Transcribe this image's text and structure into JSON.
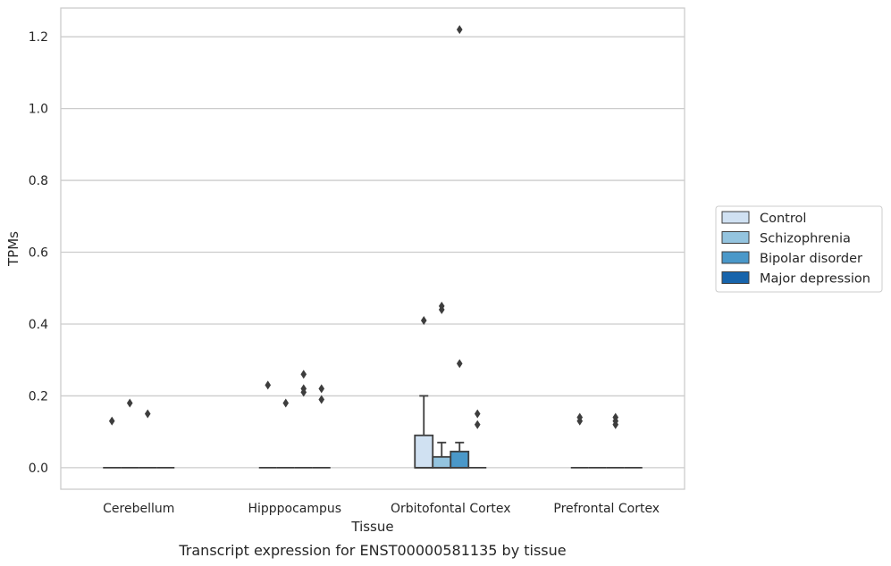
{
  "chart_data": {
    "type": "box",
    "title": "",
    "caption": "Transcript expression for ENST00000581135 by tissue",
    "xlabel": "Tissue",
    "ylabel": "TPMs",
    "ylim": [
      -0.06,
      1.28
    ],
    "yticks": [
      0.0,
      0.2,
      0.4,
      0.6,
      0.8,
      1.0,
      1.2
    ],
    "ytick_labels": [
      "0.0",
      "0.2",
      "0.4",
      "0.6",
      "0.8",
      "1.0",
      "1.2"
    ],
    "grid": "horizontal",
    "legend_position": "right",
    "categories": [
      "Cerebellum",
      "Hipppocampus",
      "Orbitofontal Cortex",
      "Prefrontal Cortex"
    ],
    "series": [
      {
        "name": "Control",
        "color": "#d0e1f2",
        "boxes": [
          {
            "q1": 0,
            "median": 0,
            "q3": 0,
            "whisker_low": 0,
            "whisker_high": 0,
            "outliers": [
              0.13
            ]
          },
          {
            "q1": 0,
            "median": 0,
            "q3": 0,
            "whisker_low": 0,
            "whisker_high": 0,
            "outliers": [
              0.23
            ]
          },
          {
            "q1": 0,
            "median": 0,
            "q3": 0.09,
            "whisker_low": 0,
            "whisker_high": 0.2,
            "outliers": [
              0.41
            ]
          },
          {
            "q1": 0,
            "median": 0,
            "q3": 0,
            "whisker_low": 0,
            "whisker_high": 0,
            "outliers": [
              0.13,
              0.14
            ]
          }
        ]
      },
      {
        "name": "Schizophrenia",
        "color": "#94c4df",
        "boxes": [
          {
            "q1": 0,
            "median": 0,
            "q3": 0,
            "whisker_low": 0,
            "whisker_high": 0,
            "outliers": [
              0.18
            ]
          },
          {
            "q1": 0,
            "median": 0,
            "q3": 0,
            "whisker_low": 0,
            "whisker_high": 0,
            "outliers": [
              0.18
            ]
          },
          {
            "q1": 0,
            "median": 0,
            "q3": 0.03,
            "whisker_low": 0,
            "whisker_high": 0.07,
            "outliers": [
              0.44,
              0.45
            ]
          },
          {
            "q1": 0,
            "median": 0,
            "q3": 0,
            "whisker_low": 0,
            "whisker_high": 0,
            "outliers": []
          }
        ]
      },
      {
        "name": "Bipolar disorder",
        "color": "#4a98c9",
        "boxes": [
          {
            "q1": 0,
            "median": 0,
            "q3": 0,
            "whisker_low": 0,
            "whisker_high": 0,
            "outliers": [
              0.15
            ]
          },
          {
            "q1": 0,
            "median": 0,
            "q3": 0,
            "whisker_low": 0,
            "whisker_high": 0,
            "outliers": [
              0.21,
              0.22,
              0.26
            ]
          },
          {
            "q1": 0,
            "median": 0,
            "q3": 0.045,
            "whisker_low": 0,
            "whisker_high": 0.07,
            "outliers": [
              0.29,
              1.22
            ]
          },
          {
            "q1": 0,
            "median": 0,
            "q3": 0,
            "whisker_low": 0,
            "whisker_high": 0,
            "outliers": [
              0.12,
              0.13,
              0.14
            ]
          }
        ]
      },
      {
        "name": "Major depression",
        "color": "#1764ab",
        "boxes": [
          {
            "q1": 0,
            "median": 0,
            "q3": 0,
            "whisker_low": 0,
            "whisker_high": 0,
            "outliers": []
          },
          {
            "q1": 0,
            "median": 0,
            "q3": 0,
            "whisker_low": 0,
            "whisker_high": 0,
            "outliers": [
              0.19,
              0.22
            ]
          },
          {
            "q1": 0,
            "median": 0,
            "q3": 0,
            "whisker_low": 0,
            "whisker_high": 0,
            "outliers": [
              0.12,
              0.15
            ]
          },
          {
            "q1": 0,
            "median": 0,
            "q3": 0,
            "whisker_low": 0,
            "whisker_high": 0,
            "outliers": []
          }
        ]
      }
    ]
  }
}
